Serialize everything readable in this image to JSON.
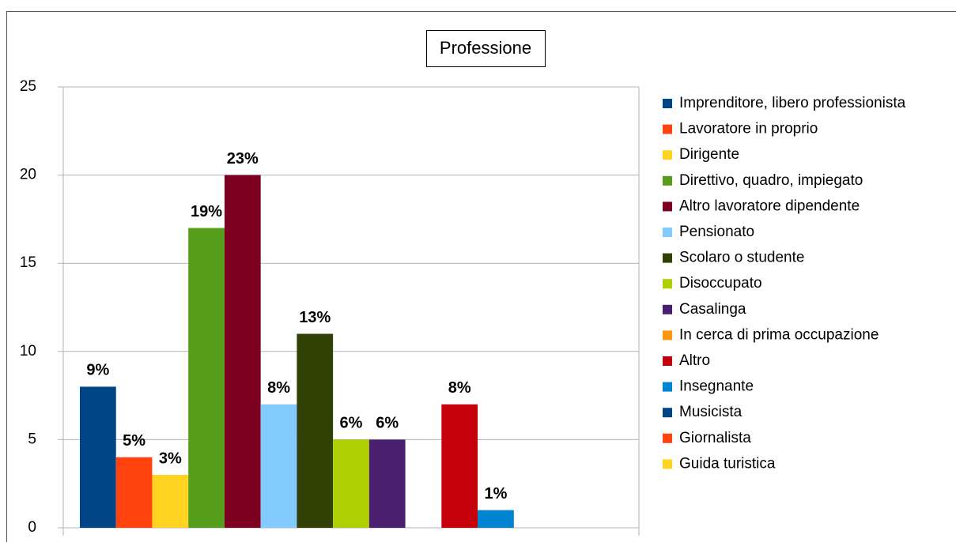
{
  "chart_data": {
    "type": "bar",
    "title": "Professione",
    "ylim": [
      0,
      25
    ],
    "yticks": [
      0,
      5,
      10,
      15,
      20,
      25
    ],
    "grid": true,
    "legend": "right",
    "series": [
      {
        "name": "Imprenditore, libero professionista",
        "color": "#004586",
        "values": [
          8
        ],
        "value_labels": [
          "9%"
        ]
      },
      {
        "name": "Lavoratore in proprio",
        "color": "#ff420e",
        "values": [
          4
        ],
        "value_labels": [
          "5%"
        ]
      },
      {
        "name": "Dirigente",
        "color": "#ffd320",
        "values": [
          3
        ],
        "value_labels": [
          "3%"
        ]
      },
      {
        "name": "Direttivo, quadro, impiegato",
        "color": "#579d1c",
        "values": [
          17
        ],
        "value_labels": [
          "19%"
        ]
      },
      {
        "name": "Altro lavoratore dipendente",
        "color": "#7e0021",
        "values": [
          20
        ],
        "value_labels": [
          "23%"
        ]
      },
      {
        "name": "Pensionato",
        "color": "#83caff",
        "values": [
          7
        ],
        "value_labels": [
          "8%"
        ]
      },
      {
        "name": "Scolaro o studente",
        "color": "#314004",
        "values": [
          11
        ],
        "value_labels": [
          "13%"
        ]
      },
      {
        "name": "Disoccupato",
        "color": "#aecf00",
        "values": [
          5
        ],
        "value_labels": [
          "6%"
        ]
      },
      {
        "name": "Casalinga",
        "color": "#4b1f6f",
        "values": [
          5
        ],
        "value_labels": [
          "6%"
        ]
      },
      {
        "name": "In cerca di prima occupazione",
        "color": "#ff950e",
        "values": [
          0
        ],
        "value_labels": [
          null
        ]
      },
      {
        "name": "Altro",
        "color": "#c5000b",
        "values": [
          7
        ],
        "value_labels": [
          "8%"
        ]
      },
      {
        "name": "Insegnante",
        "color": "#0084d1",
        "values": [
          1
        ],
        "value_labels": [
          "1%"
        ]
      },
      {
        "name": "Musicista",
        "color": "#004586",
        "values": [
          0
        ],
        "value_labels": [
          null
        ]
      },
      {
        "name": "Giornalista",
        "color": "#ff420e",
        "values": [
          0
        ],
        "value_labels": [
          null
        ]
      },
      {
        "name": "Guida turistica",
        "color": "#ffd320",
        "values": [
          0
        ],
        "value_labels": [
          null
        ]
      }
    ]
  }
}
